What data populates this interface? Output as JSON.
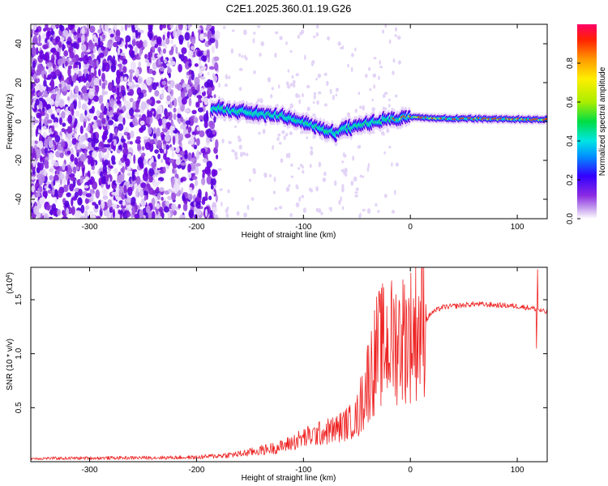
{
  "figure": {
    "title": "C2E1.2025.360.01.19.G26"
  },
  "chart_data": [
    {
      "type": "heatmap",
      "name": "spectrogram",
      "xlabel": "Height of straight line (km)",
      "ylabel": "Frequency (Hz)",
      "xlim": [
        -355,
        128
      ],
      "ylim": [
        -50,
        50
      ],
      "xticks": [
        -300,
        -200,
        -100,
        0,
        100
      ],
      "xtick_labels": [
        "-300",
        "-200",
        "-100",
        "0",
        "100"
      ],
      "yticks": [
        -40,
        -20,
        0,
        20,
        40
      ],
      "ytick_labels": [
        "-40",
        "-20",
        "0",
        "20",
        "40"
      ],
      "noise_region_end_km": -180,
      "signal_start_km": -185,
      "center_frequency_track": [
        {
          "x": -185,
          "f": 7
        },
        {
          "x": -160,
          "f": 5
        },
        {
          "x": -140,
          "f": 4
        },
        {
          "x": -120,
          "f": 3
        },
        {
          "x": -100,
          "f": 0
        },
        {
          "x": -80,
          "f": -5
        },
        {
          "x": -70,
          "f": -6
        },
        {
          "x": -55,
          "f": -3
        },
        {
          "x": -40,
          "f": -1
        },
        {
          "x": -20,
          "f": 1
        },
        {
          "x": 0,
          "f": 2
        },
        {
          "x": 50,
          "f": 1.5
        },
        {
          "x": 128,
          "f": 1
        }
      ],
      "colorbar": {
        "label": "Normalized spectral amplitude",
        "range": [
          0,
          1
        ],
        "ticks": [
          0.0,
          0.2,
          0.4,
          0.6,
          0.8
        ],
        "tick_labels": [
          "0.0",
          "0.2",
          "0.4",
          "0.6",
          "0.8"
        ],
        "colormap": [
          "#ffffff",
          "#c9a6ee",
          "#8a2be2",
          "#3300ff",
          "#0090ff",
          "#00e5e5",
          "#00dd44",
          "#aaee00",
          "#ffee00",
          "#ff9900",
          "#ff2200",
          "#ff0066"
        ]
      }
    },
    {
      "type": "line",
      "name": "snr",
      "xlabel": "Height of straight line (km)",
      "ylabel": "SNR (10 * v/v)",
      "y_multiplier_label": "(x10",
      "y_multiplier_exponent": "4",
      "y_multiplier_suffix": ")",
      "xlim": [
        -355,
        128
      ],
      "ylim": [
        0,
        1.8
      ],
      "xticks": [
        -300,
        -200,
        -100,
        0,
        100
      ],
      "xtick_labels": [
        "-300",
        "-200",
        "-100",
        "0",
        "100"
      ],
      "yticks": [
        0.5,
        1.0,
        1.5
      ],
      "ytick_labels": [
        "0.5",
        "1.0",
        "1.5"
      ],
      "line_color": "#ee2222",
      "envelope": [
        {
          "x": -355,
          "y": 0.03
        },
        {
          "x": -200,
          "y": 0.04
        },
        {
          "x": -160,
          "y": 0.07
        },
        {
          "x": -120,
          "y": 0.14
        },
        {
          "x": -100,
          "y": 0.22
        },
        {
          "x": -70,
          "y": 0.3
        },
        {
          "x": -50,
          "y": 0.4
        },
        {
          "x": -40,
          "y": 0.75
        },
        {
          "x": -30,
          "y": 1.05
        },
        {
          "x": -20,
          "y": 1.1
        },
        {
          "x": -10,
          "y": 1.15
        },
        {
          "x": 0,
          "y": 1.18
        },
        {
          "x": 10,
          "y": 1.25
        },
        {
          "x": 20,
          "y": 1.38
        },
        {
          "x": 30,
          "y": 1.43
        },
        {
          "x": 60,
          "y": 1.46
        },
        {
          "x": 100,
          "y": 1.44
        },
        {
          "x": 115,
          "y": 1.42
        },
        {
          "x": 128,
          "y": 1.38
        }
      ],
      "spikes": [
        {
          "x": 119,
          "y": 1.78
        },
        {
          "x": 118,
          "y": 1.05
        }
      ]
    }
  ]
}
